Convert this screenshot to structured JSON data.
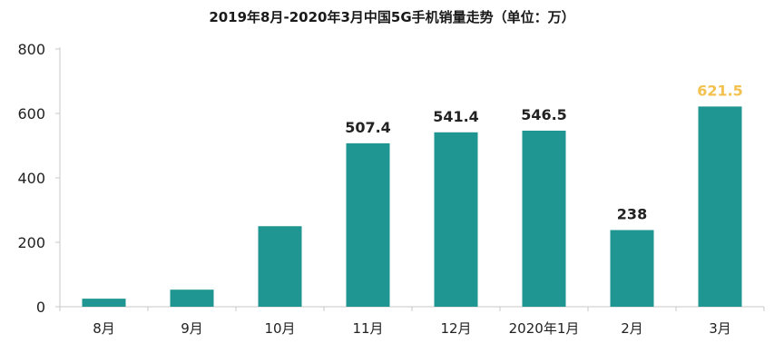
{
  "colors": {
    "bar": "#1f9692",
    "label": "#222222",
    "highlight_label": "#f2c14e",
    "axis": "#c8c8c8"
  },
  "chart_data": {
    "type": "bar",
    "title": "2019年8月-2020年3月中国5G手机销量走势（单位：万）",
    "xlabel": "",
    "ylabel": "",
    "categories": [
      "8月",
      "9月",
      "10月",
      "11月",
      "12月",
      "2020年1月",
      "2月",
      "3月"
    ],
    "values": [
      25,
      53,
      250,
      507.4,
      541.4,
      546.5,
      238,
      621.5
    ],
    "data_labels": [
      "",
      "",
      "",
      "507.4",
      "541.4",
      "546.5",
      "238",
      "621.5"
    ],
    "highlight_index": 7,
    "ylim": [
      0,
      800
    ],
    "yticks": [
      0,
      200,
      400,
      600,
      800
    ],
    "grid": false,
    "legend": "none"
  }
}
